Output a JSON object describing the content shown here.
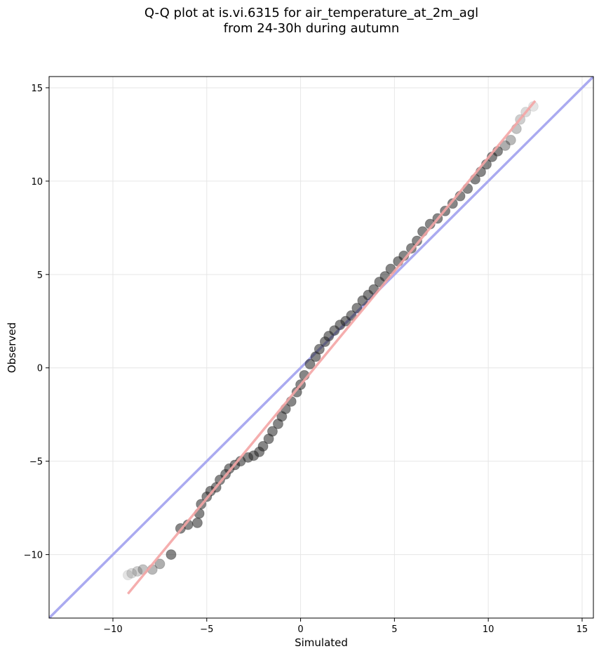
{
  "chart_data": {
    "type": "scatter",
    "title": "Q-Q plot at is.vi.6315 for air_temperature_at_2m_agl\nfrom 24-30h during autumn",
    "xlabel": "Simulated",
    "ylabel": "Observed",
    "xlim": [
      -13.4,
      15.6
    ],
    "ylim": [
      -13.4,
      15.6
    ],
    "xticks": [
      -10,
      -5,
      0,
      5,
      10,
      15
    ],
    "yticks": [
      -10,
      -5,
      0,
      5,
      10,
      15
    ],
    "xtick_labels": [
      "−10",
      "−5",
      "0",
      "5",
      "10",
      "15"
    ],
    "ytick_labels": [
      "−10",
      "−5",
      "0",
      "5",
      "10",
      "15"
    ],
    "grid": true,
    "reference_line": {
      "label": "1:1 line",
      "from": [
        -13.4,
        -13.4
      ],
      "to": [
        15.6,
        15.6
      ],
      "color": "#aaaaf0"
    },
    "fit_line": {
      "from": [
        -9.2,
        -12.1
      ],
      "to": [
        12.5,
        14.3
      ],
      "color": "#f4a5a5"
    },
    "quantiles": [
      {
        "x": -9.2,
        "y": -11.1
      },
      {
        "x": -9.0,
        "y": -11.0
      },
      {
        "x": -8.7,
        "y": -10.9
      },
      {
        "x": -8.4,
        "y": -10.8
      },
      {
        "x": -7.9,
        "y": -10.8
      },
      {
        "x": -7.5,
        "y": -10.5
      },
      {
        "x": -6.9,
        "y": -10.0
      },
      {
        "x": -6.4,
        "y": -8.6
      },
      {
        "x": -6.0,
        "y": -8.4
      },
      {
        "x": -5.5,
        "y": -8.3
      },
      {
        "x": -5.4,
        "y": -7.8
      },
      {
        "x": -5.3,
        "y": -7.3
      },
      {
        "x": -5.0,
        "y": -6.9
      },
      {
        "x": -4.8,
        "y": -6.6
      },
      {
        "x": -4.5,
        "y": -6.4
      },
      {
        "x": -4.3,
        "y": -6.0
      },
      {
        "x": -4.0,
        "y": -5.7
      },
      {
        "x": -3.8,
        "y": -5.4
      },
      {
        "x": -3.5,
        "y": -5.2
      },
      {
        "x": -3.2,
        "y": -5.0
      },
      {
        "x": -2.8,
        "y": -4.8
      },
      {
        "x": -2.5,
        "y": -4.7
      },
      {
        "x": -2.2,
        "y": -4.5
      },
      {
        "x": -2.0,
        "y": -4.2
      },
      {
        "x": -1.7,
        "y": -3.8
      },
      {
        "x": -1.5,
        "y": -3.4
      },
      {
        "x": -1.2,
        "y": -3.0
      },
      {
        "x": -1.0,
        "y": -2.6
      },
      {
        "x": -0.8,
        "y": -2.2
      },
      {
        "x": -0.5,
        "y": -1.8
      },
      {
        "x": -0.2,
        "y": -1.3
      },
      {
        "x": 0.0,
        "y": -0.9
      },
      {
        "x": 0.2,
        "y": -0.4
      },
      {
        "x": 0.5,
        "y": 0.2
      },
      {
        "x": 0.8,
        "y": 0.6
      },
      {
        "x": 1.0,
        "y": 1.0
      },
      {
        "x": 1.3,
        "y": 1.4
      },
      {
        "x": 1.5,
        "y": 1.7
      },
      {
        "x": 1.8,
        "y": 2.0
      },
      {
        "x": 2.1,
        "y": 2.3
      },
      {
        "x": 2.4,
        "y": 2.5
      },
      {
        "x": 2.7,
        "y": 2.8
      },
      {
        "x": 3.0,
        "y": 3.2
      },
      {
        "x": 3.3,
        "y": 3.6
      },
      {
        "x": 3.6,
        "y": 3.9
      },
      {
        "x": 3.9,
        "y": 4.2
      },
      {
        "x": 4.2,
        "y": 4.6
      },
      {
        "x": 4.5,
        "y": 4.9
      },
      {
        "x": 4.8,
        "y": 5.3
      },
      {
        "x": 5.2,
        "y": 5.7
      },
      {
        "x": 5.5,
        "y": 6.0
      },
      {
        "x": 5.9,
        "y": 6.4
      },
      {
        "x": 6.2,
        "y": 6.8
      },
      {
        "x": 6.5,
        "y": 7.3
      },
      {
        "x": 6.9,
        "y": 7.7
      },
      {
        "x": 7.3,
        "y": 8.0
      },
      {
        "x": 7.7,
        "y": 8.4
      },
      {
        "x": 8.1,
        "y": 8.8
      },
      {
        "x": 8.5,
        "y": 9.2
      },
      {
        "x": 8.9,
        "y": 9.6
      },
      {
        "x": 9.3,
        "y": 10.1
      },
      {
        "x": 9.6,
        "y": 10.5
      },
      {
        "x": 9.9,
        "y": 10.9
      },
      {
        "x": 10.2,
        "y": 11.3
      },
      {
        "x": 10.5,
        "y": 11.6
      },
      {
        "x": 10.9,
        "y": 11.9
      },
      {
        "x": 11.2,
        "y": 12.2
      },
      {
        "x": 11.5,
        "y": 12.8
      },
      {
        "x": 11.7,
        "y": 13.3
      },
      {
        "x": 12.0,
        "y": 13.7
      },
      {
        "x": 12.4,
        "y": 14.0
      }
    ]
  }
}
